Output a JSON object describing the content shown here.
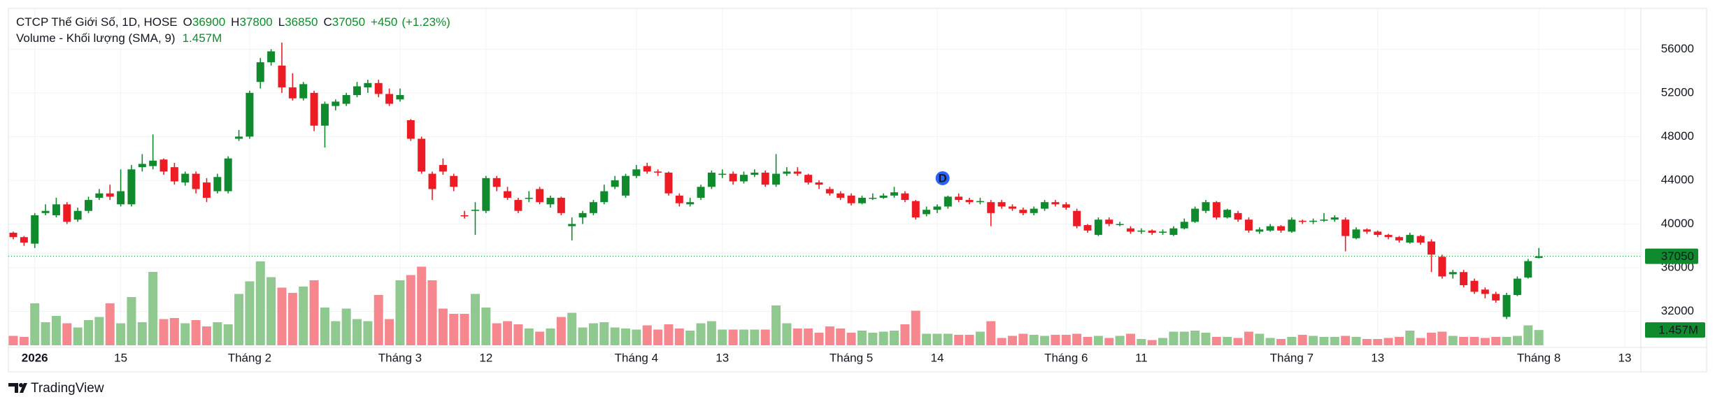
{
  "chart_data": {
    "type": "candlestick",
    "legend": {
      "title": "CTCP Thế Giới Số, 1D, HOSE",
      "o": "O",
      "h": "H",
      "l": "L",
      "c": "C",
      "change": {
        "value": 450,
        "label": "+450"
      },
      "change_pct": {
        "value": 1.23,
        "label": "(+1.23%)"
      },
      "volume_title": "Volume - Khối lượng (SMA, 9)"
    },
    "event_marker": "D",
    "brand": "TradingView",
    "up_color": "#0f8b2e",
    "down_color": "#ed1c24",
    "volume_up_color": "#8fc98f",
    "volume_down_color": "#f7878e",
    "ylim": [
      28900,
      59700
    ],
    "yticks": [
      32000,
      36000,
      40000,
      44000,
      48000,
      52000,
      56000
    ],
    "grid": true,
    "categories": [
      null,
      null,
      "2026",
      null,
      null,
      null,
      null,
      null,
      null,
      null,
      "15",
      null,
      null,
      null,
      null,
      null,
      null,
      null,
      null,
      null,
      null,
      null,
      "Tháng 2",
      null,
      null,
      null,
      null,
      null,
      null,
      null,
      null,
      null,
      null,
      null,
      null,
      null,
      "Tháng 3",
      null,
      null,
      null,
      null,
      null,
      null,
      null,
      "12",
      null,
      null,
      null,
      null,
      null,
      null,
      null,
      null,
      null,
      null,
      null,
      null,
      null,
      "Tháng 4",
      null,
      null,
      null,
      null,
      null,
      null,
      null,
      "13",
      null,
      null,
      null,
      null,
      null,
      null,
      null,
      null,
      null,
      null,
      null,
      "Tháng 5",
      null,
      null,
      null,
      null,
      null,
      null,
      null,
      "14",
      null,
      null,
      null,
      null,
      null,
      null,
      null,
      null,
      null,
      null,
      null,
      "Tháng 6",
      null,
      null,
      null,
      null,
      null,
      null,
      "11",
      null,
      null,
      null,
      null,
      null,
      null,
      null,
      null,
      null,
      null,
      null,
      null,
      null,
      "Tháng 7",
      null,
      null,
      null,
      null,
      null,
      null,
      null,
      "13",
      null,
      null,
      null,
      null,
      null,
      null,
      null,
      null,
      null,
      null,
      null,
      null,
      null,
      null,
      "Tháng 8",
      null,
      null,
      null,
      null,
      null,
      null,
      null,
      "13",
      null
    ],
    "open": [
      39200,
      38800,
      38200,
      41000,
      40800,
      41800,
      40400,
      41200,
      42400,
      42800,
      41800,
      41800,
      45200,
      45300,
      45900,
      45200,
      43800,
      44600,
      43800,
      43000,
      43000,
      47800,
      48000,
      53000,
      54800,
      54500,
      52500,
      51500,
      52000,
      49000,
      50800,
      51000,
      51800,
      52500,
      52900,
      51900,
      51400,
      49500,
      47800,
      44600,
      45400,
      44400,
      40800,
      41200,
      41200,
      44200,
      43000,
      42200,
      42300,
      43200,
      41800,
      42400,
      39800,
      40600,
      41000,
      42000,
      43400,
      42600,
      44400,
      45300,
      44800,
      44700,
      42600,
      41800,
      42400,
      43400,
      44500,
      44600,
      43900,
      44500,
      44700,
      43600,
      44600,
      44800,
      44500,
      43800,
      43200,
      42800,
      42600,
      41900,
      42400,
      42400,
      42600,
      42800,
      42100,
      40900,
      41300,
      41600,
      42500,
      42200,
      42000,
      42000,
      42000,
      41600,
      41300,
      41000,
      41400,
      42000,
      41800,
      41200,
      39900,
      39000,
      40400,
      40000,
      39600,
      39300,
      39400,
      39200,
      39000,
      39600,
      40200,
      41200,
      42000,
      40600,
      41000,
      40400,
      39300,
      39400,
      39800,
      39300,
      40300,
      40200,
      40300,
      40400,
      40400,
      38700,
      39500,
      39300,
      39000,
      38800,
      38300,
      38900,
      38400,
      37000,
      35400,
      35600,
      34800,
      34000,
      33600,
      31500,
      33500,
      35100,
      36900,
      null,
      null,
      null,
      null,
      null,
      null,
      null,
      null,
      null
    ],
    "high": [
      39300,
      38900,
      41000,
      41800,
      42400,
      42000,
      41500,
      42500,
      43200,
      43600,
      45000,
      45400,
      46400,
      48200,
      46000,
      45600,
      44800,
      44800,
      44200,
      44600,
      46200,
      48600,
      52200,
      55200,
      56000,
      56600,
      53800,
      53000,
      52200,
      51200,
      51400,
      52000,
      53000,
      53200,
      53200,
      52400,
      52400,
      49600,
      48000,
      44800,
      46000,
      44600,
      41200,
      42000,
      44400,
      44400,
      43400,
      42400,
      43000,
      43400,
      42600,
      42500,
      40600,
      41200,
      42200,
      43600,
      44400,
      44600,
      45400,
      45600,
      45000,
      44800,
      42800,
      42400,
      43600,
      44900,
      45000,
      44800,
      44800,
      45000,
      44900,
      46400,
      45200,
      45200,
      44600,
      44000,
      43400,
      43000,
      42800,
      42600,
      42800,
      42800,
      43400,
      43000,
      42200,
      41600,
      41800,
      42600,
      42800,
      42400,
      42400,
      42200,
      42200,
      41800,
      41500,
      41600,
      42200,
      42200,
      42000,
      41400,
      40000,
      40600,
      40600,
      40200,
      39800,
      39600,
      39500,
      39500,
      39800,
      40500,
      41600,
      42200,
      42100,
      41400,
      41200,
      40600,
      39700,
      40000,
      39900,
      40600,
      40400,
      40500,
      41000,
      40800,
      40600,
      39700,
      39600,
      39400,
      39100,
      38900,
      39200,
      39000,
      38600,
      37200,
      35800,
      35800,
      35000,
      34200,
      33800,
      33700,
      35200,
      36800,
      37800,
      null,
      null,
      null,
      null,
      null,
      null,
      null,
      null,
      null
    ],
    "low": [
      38600,
      38000,
      37800,
      40800,
      40600,
      40000,
      40200,
      41000,
      42200,
      42200,
      41600,
      41600,
      44800,
      45000,
      44500,
      43600,
      43500,
      42800,
      42000,
      42800,
      42800,
      47600,
      47800,
      52400,
      54500,
      52000,
      51300,
      51300,
      48500,
      47000,
      50400,
      50800,
      51600,
      52000,
      51600,
      50800,
      51200,
      47600,
      44600,
      42200,
      44500,
      43000,
      40500,
      39000,
      41000,
      43000,
      42200,
      41000,
      42000,
      41800,
      41500,
      40800,
      38500,
      40000,
      40800,
      41800,
      43200,
      42400,
      44200,
      44600,
      44400,
      42600,
      41600,
      41600,
      42200,
      43200,
      44200,
      43600,
      43700,
      44300,
      43400,
      43400,
      44400,
      44400,
      43600,
      43200,
      42600,
      42200,
      41700,
      41800,
      42200,
      42300,
      42400,
      42000,
      40400,
      40700,
      41000,
      41400,
      42000,
      41800,
      41800,
      39800,
      41400,
      41200,
      40800,
      40800,
      41200,
      41600,
      41300,
      39600,
      39200,
      38900,
      39800,
      39800,
      39100,
      39100,
      39000,
      39000,
      38900,
      39500,
      40100,
      41000,
      40400,
      40500,
      40200,
      39200,
      39100,
      39300,
      39200,
      39200,
      40000,
      40000,
      40200,
      40200,
      37500,
      38600,
      39100,
      38800,
      38600,
      38300,
      38200,
      38100,
      35600,
      35000,
      35000,
      34200,
      33600,
      33200,
      32800,
      31300,
      33400,
      35000,
      36850,
      null,
      null,
      null,
      null,
      null,
      null,
      null,
      null,
      null
    ],
    "close": [
      38800,
      38300,
      40800,
      41200,
      41800,
      40200,
      41200,
      42200,
      42800,
      42500,
      43000,
      45000,
      45500,
      45800,
      44800,
      43900,
      44600,
      43200,
      42400,
      44300,
      46000,
      48000,
      52000,
      54800,
      55800,
      52500,
      51500,
      52800,
      49000,
      51000,
      51200,
      51800,
      52600,
      52900,
      51900,
      51000,
      51800,
      47800,
      44800,
      43200,
      44800,
      43400,
      40700,
      41300,
      44200,
      43400,
      42400,
      41200,
      42400,
      42000,
      42400,
      41000,
      40000,
      41000,
      42000,
      43000,
      44000,
      44400,
      45000,
      44800,
      44700,
      42800,
      41900,
      42000,
      43400,
      44700,
      44600,
      43900,
      44500,
      44700,
      43600,
      44600,
      44800,
      44600,
      43800,
      43600,
      42800,
      42400,
      41900,
      42400,
      42400,
      42600,
      42900,
      42200,
      40600,
      41300,
      41600,
      42500,
      42200,
      42000,
      42100,
      41000,
      41600,
      41400,
      41000,
      41400,
      42000,
      41800,
      41500,
      39800,
      39400,
      40400,
      40000,
      40000,
      39300,
      39400,
      39200,
      39300,
      39600,
      40200,
      41400,
      42000,
      40600,
      41300,
      40400,
      39400,
      39500,
      39800,
      39400,
      40400,
      40200,
      40300,
      40400,
      40600,
      38900,
      39500,
      39300,
      39000,
      38800,
      38500,
      39000,
      38300,
      37200,
      35200,
      35600,
      34400,
      33800,
      33600,
      33000,
      33500,
      35000,
      36600,
      37050,
      null,
      null,
      null,
      null,
      null,
      null,
      null,
      null,
      null
    ],
    "volume": {
      "values": [
        0.9,
        0.8,
        4.0,
        2.2,
        2.8,
        2.1,
        1.7,
        2.4,
        2.7,
        4.0,
        2.1,
        4.6,
        2.2,
        7.0,
        2.5,
        2.6,
        2.1,
        2.4,
        1.8,
        2.2,
        2.0,
        4.9,
        6.1,
        8.0,
        6.5,
        5.5,
        5.0,
        5.6,
        6.2,
        3.6,
        2.3,
        3.5,
        2.5,
        2.3,
        4.8,
        2.5,
        6.2,
        6.7,
        7.5,
        6.2,
        3.5,
        3.0,
        3.0,
        4.9,
        3.6,
        2.1,
        2.3,
        2.0,
        1.6,
        1.3,
        1.6,
        2.7,
        3.1,
        1.7,
        2.1,
        2.2,
        1.7,
        1.6,
        1.5,
        1.9,
        1.5,
        2.0,
        1.6,
        1.4,
        2.1,
        2.3,
        1.5,
        1.5,
        1.5,
        1.5,
        1.5,
        3.8,
        2.1,
        1.6,
        1.6,
        1.2,
        1.8,
        1.6,
        1.2,
        1.4,
        1.2,
        1.3,
        1.4,
        2.0,
        3.3,
        1.1,
        1.1,
        1.1,
        1.0,
        1.0,
        1.3,
        2.3,
        0.7,
        0.9,
        1.1,
        1.0,
        0.9,
        1.0,
        1.0,
        1.1,
        0.8,
        0.9,
        0.7,
        0.9,
        1.1,
        0.6,
        0.5,
        0.7,
        1.3,
        1.3,
        1.4,
        1.2,
        0.8,
        0.8,
        0.7,
        1.3,
        1.1,
        0.7,
        0.6,
        0.8,
        1.0,
        0.9,
        0.8,
        0.8,
        0.9,
        0.8,
        0.6,
        0.6,
        0.7,
        0.8,
        1.4,
        0.7,
        1.2,
        1.3,
        0.9,
        0.8,
        0.8,
        0.7,
        0.8,
        0.8,
        0.9,
        1.9,
        1.457,
        null,
        null,
        null,
        null,
        null,
        null,
        null,
        null,
        null
      ],
      "value_labels": [
        null,
        null,
        null,
        null,
        null,
        null,
        null,
        null,
        null,
        null,
        null,
        null,
        null,
        null,
        null,
        null,
        null,
        null,
        null,
        null,
        null,
        null,
        null,
        null,
        null,
        null,
        null,
        null,
        null,
        null,
        null,
        null,
        null,
        null,
        null,
        null,
        null,
        null,
        null,
        null,
        null,
        null,
        null,
        null,
        null,
        null,
        null,
        null,
        null,
        null,
        null,
        null,
        null,
        null,
        null,
        null,
        null,
        null,
        null,
        null,
        null,
        null,
        null,
        null,
        null,
        null,
        null,
        null,
        null,
        null,
        null,
        null,
        null,
        null,
        null,
        null,
        null,
        null,
        null,
        null,
        null,
        null,
        null,
        null,
        null,
        null,
        null,
        null,
        null,
        null,
        null,
        null,
        null,
        null,
        null,
        null,
        null,
        null,
        null,
        null,
        null,
        null,
        null,
        null,
        null,
        null,
        null,
        null,
        null,
        null,
        null,
        null,
        null,
        null,
        null,
        null,
        null,
        null,
        null,
        null,
        null,
        null,
        null,
        null,
        null,
        null,
        null,
        null,
        null,
        null,
        null,
        null,
        null,
        null,
        null,
        null,
        null,
        null,
        null,
        null,
        null,
        null,
        "1.457M",
        null,
        null,
        null,
        null,
        null,
        null,
        null,
        null,
        null
      ]
    }
  }
}
